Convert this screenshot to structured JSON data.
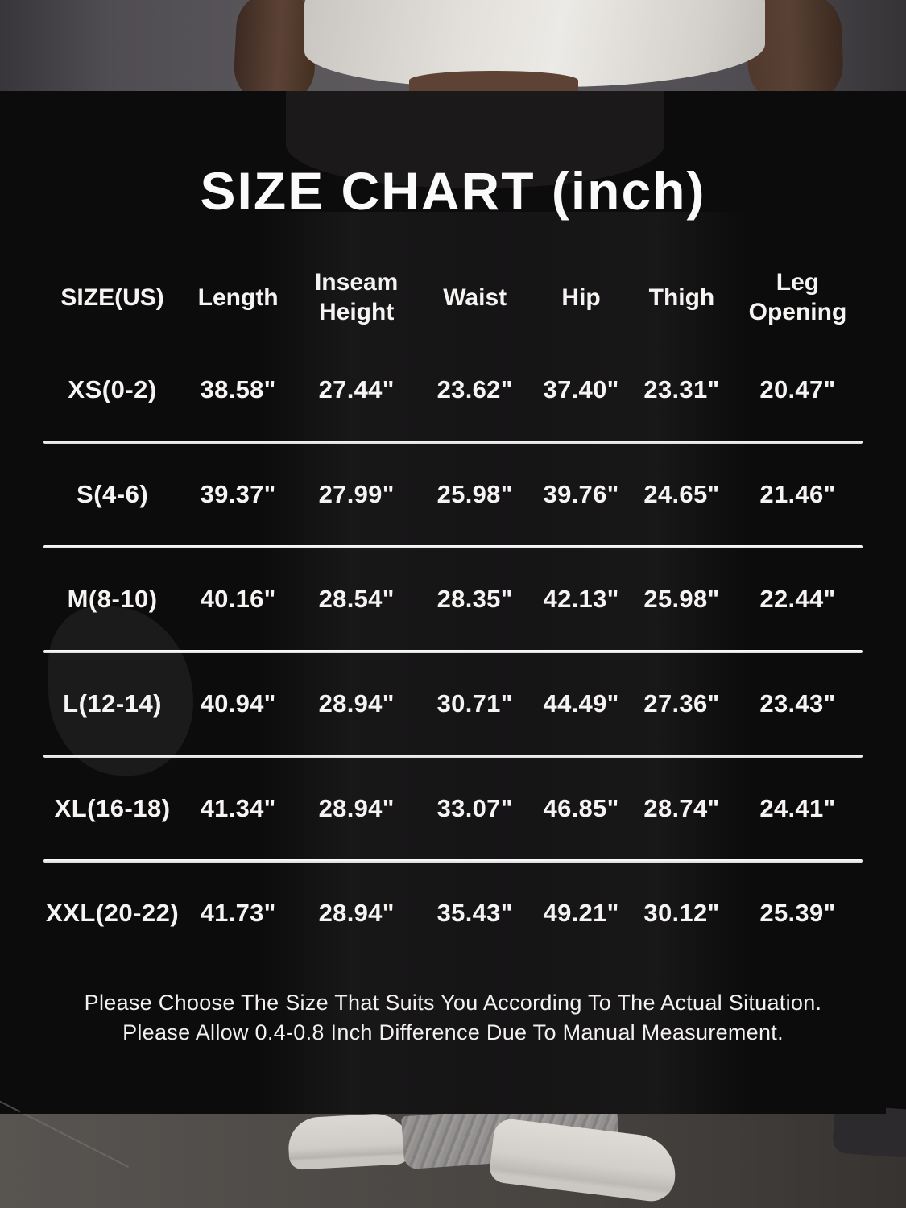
{
  "title": "SIZE CHART (inch)",
  "chart_data": {
    "type": "table",
    "title": "SIZE CHART (inch)",
    "columns": [
      "SIZE(US)",
      "Length",
      "Inseam Height",
      "Waist",
      "Hip",
      "Thigh",
      "Leg Opening"
    ],
    "rows": [
      {
        "cells": [
          "XS(0-2)",
          "38.58\"",
          "27.44\"",
          "23.62\"",
          "37.40\"",
          "23.31\"",
          "20.47\""
        ]
      },
      {
        "cells": [
          "S(4-6)",
          "39.37\"",
          "27.99\"",
          "25.98\"",
          "39.76\"",
          "24.65\"",
          "21.46\""
        ]
      },
      {
        "cells": [
          "M(8-10)",
          "40.16\"",
          "28.54\"",
          "28.35\"",
          "42.13\"",
          "25.98\"",
          "22.44\""
        ]
      },
      {
        "cells": [
          "L(12-14)",
          "40.94\"",
          "28.94\"",
          "30.71\"",
          "44.49\"",
          "27.36\"",
          "23.43\""
        ]
      },
      {
        "cells": [
          "XL(16-18)",
          "41.34\"",
          "28.94\"",
          "33.07\"",
          "46.85\"",
          "28.74\"",
          "24.41\""
        ]
      },
      {
        "cells": [
          "XXL(20-22)",
          "41.73\"",
          "28.94\"",
          "35.43\"",
          "49.21\"",
          "30.12\"",
          "25.39\""
        ]
      }
    ],
    "unit": "inch",
    "layout_hints": {
      "grid": "horizontal dividers between size rows",
      "text_color": "#ffffff",
      "background": "dark overlay on product photo"
    }
  },
  "footer": {
    "line1": "Please Choose The Size That Suits You According To The Actual Situation.",
    "line2": "Please Allow 0.4-0.8 Inch Difference Due To Manual Measurement."
  },
  "colors": {
    "panel": "#0d0c0d",
    "text": "#f6f4f3",
    "divider": "#ececec",
    "wall": "#5b585c",
    "floor": "#484441"
  }
}
